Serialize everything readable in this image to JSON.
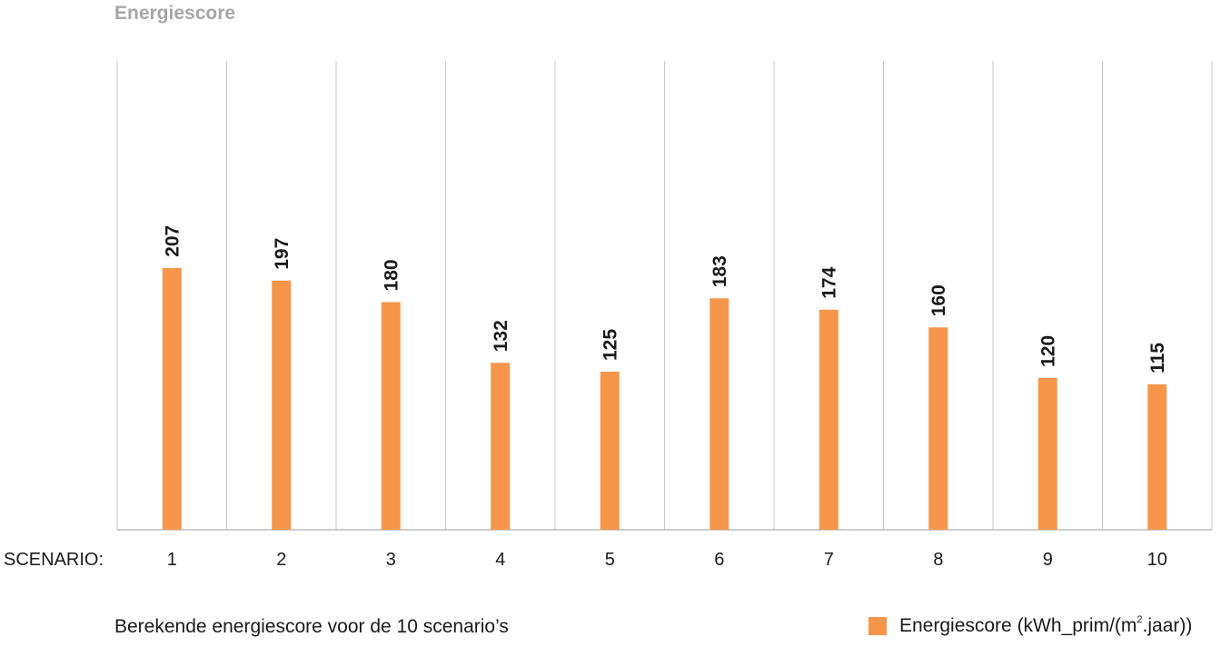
{
  "chart_data": {
    "type": "bar",
    "title": "Energiescore",
    "xlabel": "SCENARIO:",
    "categories": [
      "1",
      "2",
      "3",
      "4",
      "5",
      "6",
      "7",
      "8",
      "9",
      "10"
    ],
    "series": [
      {
        "name": "Energiescore (kWh_prim/(m².jaar))",
        "values": [
          207,
          197,
          180,
          132,
          125,
          183,
          174,
          160,
          120,
          115
        ]
      }
    ],
    "ylim": [
      0,
      400
    ],
    "grid": "vertical",
    "legend_position": "bottom-right",
    "color": "#f5964b",
    "caption": "Berekende energiescore voor de 10 scenario’s",
    "legend": {
      "label_main": "Energiescore (kWh_prim/(m",
      "label_sup": "2",
      "label_end": ".jaar))"
    }
  }
}
